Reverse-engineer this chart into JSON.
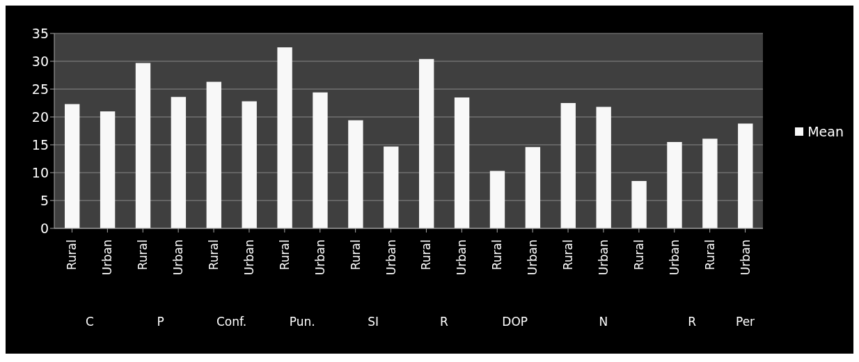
{
  "chart_data": {
    "type": "bar",
    "categories": [
      "Rural",
      "Urban",
      "Rural",
      "Urban",
      "Rural",
      "Urban",
      "Rural",
      "Urban",
      "Rural",
      "Urban",
      "Rural",
      "Urban",
      "Rural",
      "Urban",
      "Rural",
      "Urban",
      "Rural",
      "Urban",
      "Rural",
      "Urban"
    ],
    "series": [
      {
        "name": "Mean",
        "color": "#f8f8f8",
        "values": [
          22.3,
          21,
          29.7,
          23.6,
          26.3,
          22.8,
          32.5,
          24.4,
          19.4,
          14.7,
          30.4,
          23.5,
          10.3,
          14.6,
          22.5,
          21.8,
          8.5,
          15.5,
          16.1,
          18.8
        ]
      }
    ],
    "annotations": [
      "C",
      "P",
      "Conf.",
      "Pun.",
      "SI",
      "R",
      "DOP",
      "N",
      "R",
      "Per"
    ],
    "ylim": [
      0,
      35
    ],
    "yticks": [
      0,
      5,
      10,
      15,
      20,
      25,
      30,
      35
    ],
    "grid": "y",
    "legend": "right"
  }
}
